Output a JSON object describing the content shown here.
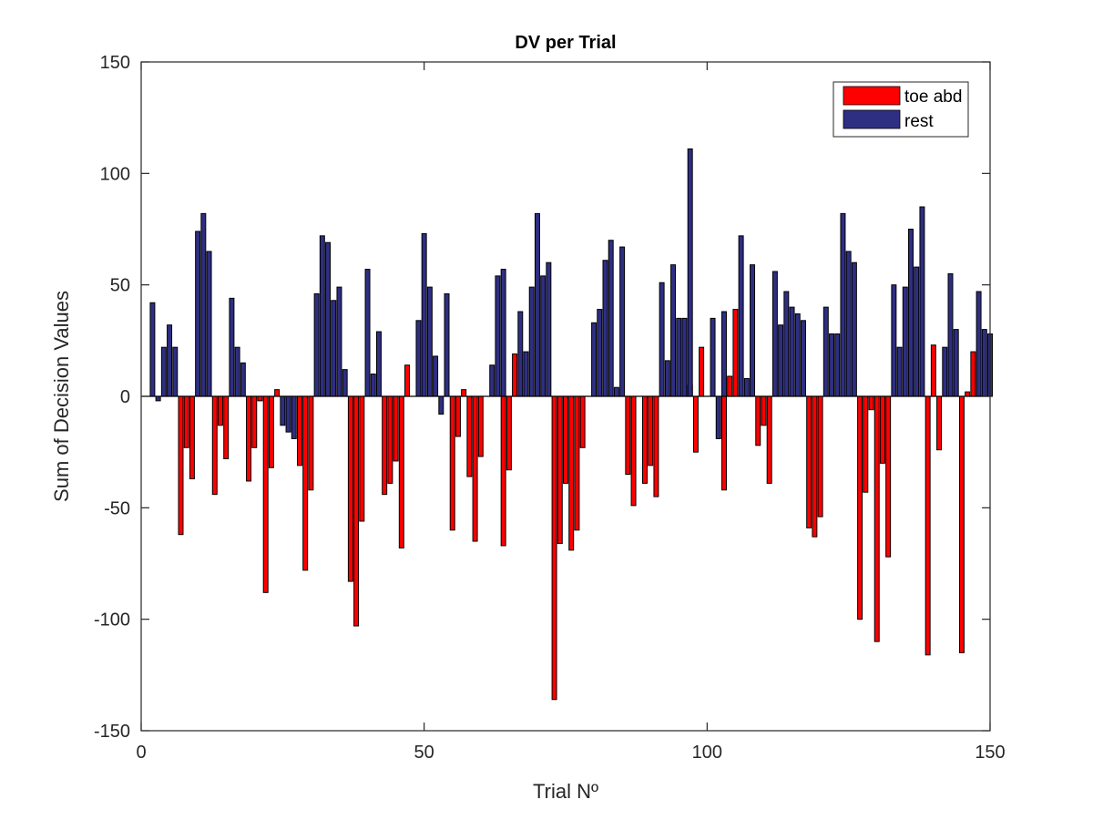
{
  "chart_data": {
    "type": "bar",
    "title": "DV per Trial",
    "xlabel": "Trial Nº",
    "ylabel": "Sum of Decision Values",
    "xlim": [
      0,
      150
    ],
    "ylim": [
      -150,
      150
    ],
    "xticks": [
      0,
      50,
      100,
      150
    ],
    "yticks": [
      -150,
      -100,
      -50,
      0,
      50,
      100,
      150
    ],
    "grid": false,
    "legend_position": "top-right",
    "series": [
      {
        "name": "toe abd",
        "color": "#ff0000",
        "points": [
          [
            7,
            -62
          ],
          [
            8,
            -23
          ],
          [
            9,
            -37
          ],
          [
            13,
            -44
          ],
          [
            14,
            -13
          ],
          [
            15,
            -28
          ],
          [
            19,
            -38
          ],
          [
            20,
            -23
          ],
          [
            21,
            -2
          ],
          [
            22,
            -88
          ],
          [
            23,
            -32
          ],
          [
            24,
            3
          ],
          [
            28,
            -31
          ],
          [
            29,
            -78
          ],
          [
            30,
            -42
          ],
          [
            37,
            -83
          ],
          [
            38,
            -103
          ],
          [
            39,
            -56
          ],
          [
            43,
            -44
          ],
          [
            44,
            -39
          ],
          [
            45,
            -29
          ],
          [
            46,
            -68
          ],
          [
            47,
            14
          ],
          [
            55,
            -60
          ],
          [
            56,
            -18
          ],
          [
            57,
            3
          ],
          [
            58,
            -36
          ],
          [
            59,
            -65
          ],
          [
            60,
            -27
          ],
          [
            64,
            -67
          ],
          [
            65,
            -33
          ],
          [
            66,
            19
          ],
          [
            73,
            -136
          ],
          [
            74,
            -66
          ],
          [
            75,
            -39
          ],
          [
            76,
            -69
          ],
          [
            77,
            -60
          ],
          [
            78,
            -23
          ],
          [
            86,
            -35
          ],
          [
            87,
            -49
          ],
          [
            89,
            -39
          ],
          [
            90,
            -31
          ],
          [
            91,
            -45
          ],
          [
            97,
            5
          ],
          [
            98,
            -25
          ],
          [
            99,
            22
          ],
          [
            103,
            -42
          ],
          [
            104,
            9
          ],
          [
            105,
            39
          ],
          [
            109,
            -22
          ],
          [
            110,
            -13
          ],
          [
            111,
            -39
          ],
          [
            118,
            -59
          ],
          [
            119,
            -63
          ],
          [
            120,
            -54
          ],
          [
            127,
            -100
          ],
          [
            128,
            -43
          ],
          [
            129,
            -6
          ],
          [
            130,
            -110
          ],
          [
            131,
            -30
          ],
          [
            132,
            -72
          ],
          [
            139,
            -116
          ],
          [
            140,
            23
          ],
          [
            141,
            -24
          ],
          [
            145,
            -115
          ],
          [
            146,
            2
          ],
          [
            147,
            20
          ]
        ]
      },
      {
        "name": "rest",
        "color": "#2e2e82",
        "points": [
          [
            2,
            42
          ],
          [
            3,
            -2
          ],
          [
            4,
            22
          ],
          [
            5,
            32
          ],
          [
            6,
            22
          ],
          [
            10,
            74
          ],
          [
            11,
            82
          ],
          [
            12,
            65
          ],
          [
            16,
            44
          ],
          [
            17,
            22
          ],
          [
            18,
            15
          ],
          [
            25,
            -13
          ],
          [
            26,
            -16
          ],
          [
            27,
            -19
          ],
          [
            31,
            46
          ],
          [
            32,
            72
          ],
          [
            33,
            69
          ],
          [
            34,
            43
          ],
          [
            35,
            49
          ],
          [
            36,
            12
          ],
          [
            40,
            57
          ],
          [
            41,
            10
          ],
          [
            42,
            29
          ],
          [
            49,
            34
          ],
          [
            50,
            73
          ],
          [
            51,
            49
          ],
          [
            52,
            18
          ],
          [
            53,
            -8
          ],
          [
            54,
            46
          ],
          [
            62,
            14
          ],
          [
            63,
            54
          ],
          [
            64,
            57
          ],
          [
            67,
            38
          ],
          [
            68,
            20
          ],
          [
            69,
            49
          ],
          [
            70,
            82
          ],
          [
            71,
            54
          ],
          [
            72,
            60
          ],
          [
            80,
            33
          ],
          [
            81,
            39
          ],
          [
            82,
            61
          ],
          [
            83,
            70
          ],
          [
            84,
            4
          ],
          [
            85,
            67
          ],
          [
            92,
            51
          ],
          [
            93,
            16
          ],
          [
            94,
            59
          ],
          [
            95,
            35
          ],
          [
            96,
            35
          ],
          [
            97,
            111
          ],
          [
            101,
            35
          ],
          [
            102,
            -19
          ],
          [
            103,
            38
          ],
          [
            106,
            72
          ],
          [
            107,
            8
          ],
          [
            108,
            59
          ],
          [
            112,
            56
          ],
          [
            113,
            32
          ],
          [
            114,
            47
          ],
          [
            115,
            40
          ],
          [
            116,
            37
          ],
          [
            117,
            34
          ],
          [
            121,
            40
          ],
          [
            122,
            28
          ],
          [
            123,
            28
          ],
          [
            124,
            82
          ],
          [
            125,
            65
          ],
          [
            126,
            60
          ],
          [
            133,
            50
          ],
          [
            134,
            22
          ],
          [
            135,
            49
          ],
          [
            136,
            75
          ],
          [
            137,
            58
          ],
          [
            138,
            85
          ],
          [
            142,
            22
          ],
          [
            143,
            55
          ],
          [
            144,
            30
          ],
          [
            148,
            47
          ],
          [
            149,
            30
          ],
          [
            150,
            28
          ]
        ]
      }
    ]
  }
}
